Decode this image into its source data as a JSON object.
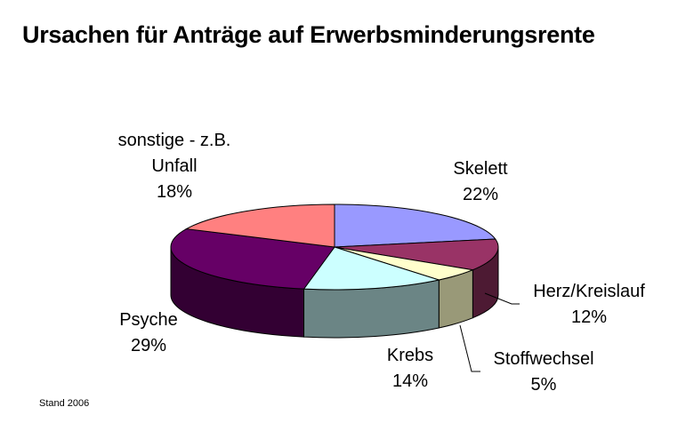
{
  "title": "Ursachen für Anträge auf Erwerbsminderungsrente",
  "footnote": "Stand 2006",
  "chart_data": {
    "type": "pie",
    "title": "Ursachen für Anträge auf Erwerbsminderungsrente",
    "unit": "%",
    "slices": [
      {
        "label": "Skelett",
        "value": 22,
        "value_label": "22%",
        "color": "#9999ff",
        "side_color": "#5c5c99"
      },
      {
        "label": "Herz/Kreislauf",
        "value": 12,
        "value_label": "12%",
        "color": "#993366",
        "side_color": "#4d1a33"
      },
      {
        "label": "Stoffwechsel",
        "value": 5,
        "value_label": "5%",
        "color": "#ffffcc",
        "side_color": "#999978"
      },
      {
        "label": "Krebs",
        "value": 14,
        "value_label": "14%",
        "color": "#ccffff",
        "side_color": "#6b8585"
      },
      {
        "label": "Psyche",
        "value": 29,
        "value_label": "29%",
        "color": "#660066",
        "side_color": "#330033"
      },
      {
        "label": "sonstige - z.B. Unfall",
        "label_lines": [
          "sonstige - z.B.",
          "Unfall"
        ],
        "value": 18,
        "value_label": "18%",
        "color": "#ff8080",
        "side_color": "#994d4d"
      }
    ],
    "style": "3d-pie",
    "legend": "none"
  }
}
